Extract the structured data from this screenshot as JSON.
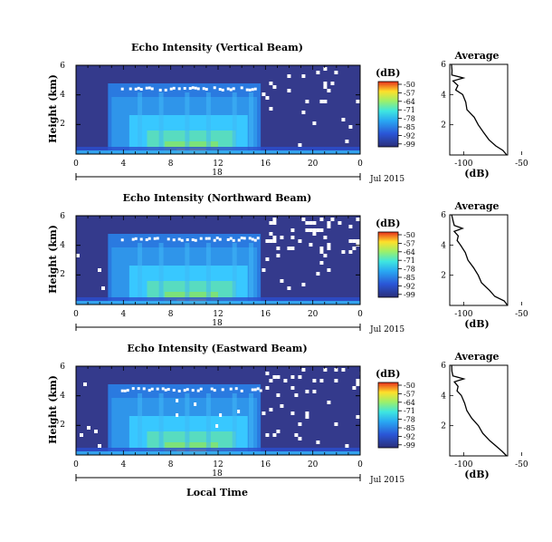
{
  "chart_data": [
    {
      "type": "heatmap",
      "title": "Echo Intensity (Vertical Beam)",
      "ylabel": "Height (km)",
      "yticks": [
        "2",
        "4",
        "6"
      ],
      "xticks": [
        "0",
        "4",
        "8",
        "12",
        "16",
        "20",
        "0"
      ],
      "xlim": [
        0,
        24
      ],
      "ylim": [
        0,
        6
      ],
      "date_label": "Jul 2015",
      "date_day": "18",
      "colorbar": {
        "unit": "(dB)",
        "ticks": [
          "-50",
          "-57",
          "-64",
          "-71",
          "-78",
          "-85",
          "-92",
          "-99"
        ]
      },
      "profile": {
        "title": "Average",
        "xlabel": "(dB)",
        "xticks": [
          "-100",
          "-50"
        ],
        "yticks": [
          "2",
          "4",
          "6"
        ]
      }
    },
    {
      "type": "heatmap",
      "title": "Echo Intensity (Northward Beam)",
      "ylabel": "Height (km)",
      "yticks": [
        "2",
        "4",
        "6"
      ],
      "xticks": [
        "0",
        "4",
        "8",
        "12",
        "16",
        "20",
        "0"
      ],
      "xlim": [
        0,
        24
      ],
      "ylim": [
        0,
        6
      ],
      "date_label": "Jul 2015",
      "date_day": "18",
      "colorbar": {
        "unit": "(dB)",
        "ticks": [
          "-50",
          "-57",
          "-64",
          "-71",
          "-78",
          "-85",
          "-92",
          "-99"
        ]
      },
      "profile": {
        "title": "Average",
        "xlabel": "(dB)",
        "xticks": [
          "-100",
          "-50"
        ],
        "yticks": [
          "2",
          "4",
          "6"
        ]
      }
    },
    {
      "type": "heatmap",
      "title": "Echo Intensity (Eastward Beam)",
      "ylabel": "Height (km)",
      "yticks": [
        "2",
        "4",
        "6"
      ],
      "xticks": [
        "0",
        "4",
        "8",
        "12",
        "16",
        "20",
        "0"
      ],
      "xlim": [
        0,
        24
      ],
      "ylim": [
        0,
        6
      ],
      "date_label": "Jul 2015",
      "date_day": "18",
      "xlabel": "Local Time",
      "colorbar": {
        "unit": "(dB)",
        "ticks": [
          "-50",
          "-57",
          "-64",
          "-71",
          "-78",
          "-85",
          "-92",
          "-99"
        ]
      },
      "profile": {
        "title": "Average",
        "xlabel": "(dB)",
        "xticks": [
          "-100",
          "-50"
        ],
        "yticks": [
          "2",
          "4",
          "6"
        ]
      }
    }
  ],
  "colors": {
    "background_low": "#343a8c",
    "mid_blue": "#2a7ae0",
    "cyan": "#38c8ff",
    "green": "#7ce27a",
    "yellow": "#ffe92a",
    "red": "#e83220"
  }
}
